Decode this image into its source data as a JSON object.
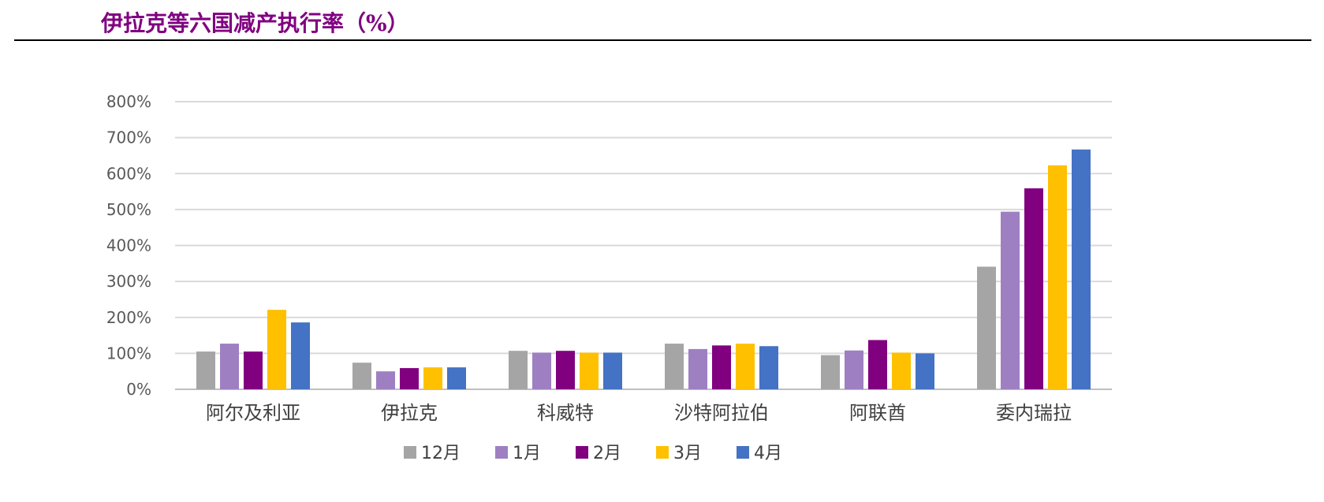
{
  "header": {
    "title": "伊拉克等六国减产执行率（%）"
  },
  "chart_data": {
    "type": "bar",
    "title": "",
    "xlabel": "",
    "ylabel": "",
    "ylim": [
      0,
      800
    ],
    "yticks": [
      "0%",
      "100%",
      "200%",
      "300%",
      "400%",
      "500%",
      "600%",
      "700%",
      "800%"
    ],
    "grid": true,
    "legend_position": "bottom",
    "categories": [
      "阿尔及利亚",
      "伊拉克",
      "科威特",
      "沙特阿拉伯",
      "阿联酋",
      "委内瑞拉"
    ],
    "series": [
      {
        "name": "12月",
        "color": "#A5A5A5",
        "values": [
          105,
          74,
          107,
          127,
          95,
          341
        ]
      },
      {
        "name": "1月",
        "color": "#9E80C2",
        "values": [
          127,
          50,
          102,
          112,
          108,
          494
        ]
      },
      {
        "name": "2月",
        "color": "#800080",
        "values": [
          105,
          59,
          107,
          122,
          137,
          559
        ]
      },
      {
        "name": "3月",
        "color": "#FFC000",
        "values": [
          221,
          61,
          102,
          127,
          102,
          623
        ]
      },
      {
        "name": "4月",
        "color": "#4472C4",
        "values": [
          186,
          61,
          102,
          120,
          100,
          667
        ]
      }
    ]
  }
}
